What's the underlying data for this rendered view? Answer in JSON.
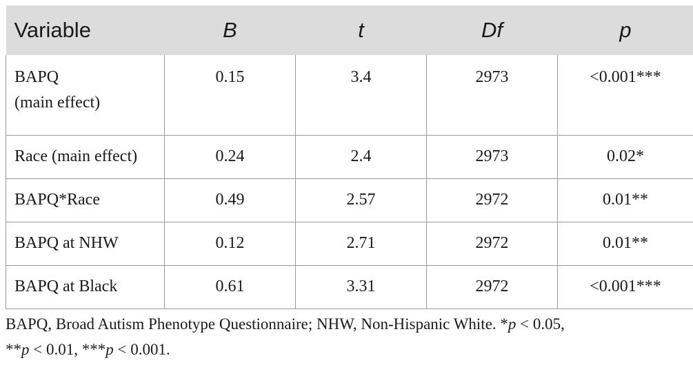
{
  "table": {
    "headers": [
      "Variable",
      "B",
      "t",
      "Df",
      "p"
    ],
    "rows": [
      {
        "variable_line1": "BAPQ",
        "variable_line2": "(main effect)",
        "B": "0.15",
        "t": "3.4",
        "Df": "2973",
        "p": "<0.001***"
      },
      {
        "variable": "Race (main effect)",
        "B": "0.24",
        "t": "2.4",
        "Df": "2973",
        "p": "0.02*"
      },
      {
        "variable": "BAPQ*Race",
        "B": "0.49",
        "t": "2.57",
        "Df": "2972",
        "p": "0.01**"
      },
      {
        "variable": "BAPQ at NHW",
        "B": "0.12",
        "t": "2.71",
        "Df": "2972",
        "p": "0.01**"
      },
      {
        "variable": "BAPQ at Black",
        "B": "0.61",
        "t": "3.31",
        "Df": "2972",
        "p": "<0.001***"
      }
    ]
  },
  "footnote": {
    "intro": "BAPQ, Broad Autism Phenotype Questionnaire; NHW, Non-Hispanic White. *",
    "p1_sym": "p",
    "p1_rest": " < 0.05,",
    "p2_pre": "**",
    "p2_sym": "p",
    "p2_rest": " < 0.01, ***",
    "p3_sym": "p",
    "p3_rest": " < 0.001."
  }
}
